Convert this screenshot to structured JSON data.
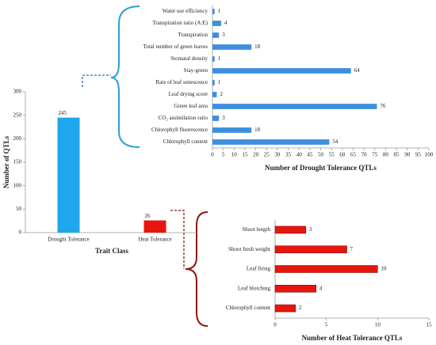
{
  "chart_data": [
    {
      "type": "bar",
      "categories": [
        "Drought Tolerance",
        "Heat Tolerance"
      ],
      "values": [
        245,
        26
      ],
      "colors": [
        "#1ea7ec",
        "#e8150d"
      ],
      "ylim": [
        0,
        300
      ],
      "yticks": [
        0,
        50,
        100,
        150,
        200,
        250,
        300
      ],
      "y_label": "Number of QTLs",
      "x_label": "Trait Class"
    },
    {
      "type": "barh",
      "categories": [
        "Water use efficiency",
        "Transpiration ratio (A:E)",
        "Transpiration",
        "Total number of green leaves",
        "Stomatal density",
        "Stay-green",
        "Rate of leaf senescence",
        "Leaf drying score",
        "Green leaf area",
        "CO₂ assimilation ratio",
        "Chlorophyll fluorescence",
        "Chlorophyll content"
      ],
      "values": [
        1,
        4,
        3,
        18,
        1,
        64,
        1,
        2,
        76,
        3,
        18,
        54
      ],
      "color": "#3d8fe0",
      "xlim": [
        0,
        100
      ],
      "xticks": [
        0,
        5,
        10,
        15,
        20,
        25,
        30,
        35,
        40,
        45,
        50,
        55,
        60,
        65,
        70,
        75,
        80,
        85,
        90,
        95,
        100
      ],
      "x_label": "Number of Drought Tolerance QTLs"
    },
    {
      "type": "barh",
      "categories": [
        "Shoot length",
        "Shoot fresh weight",
        "Leaf firing",
        "Leaf blotching",
        "Chlorophyll content"
      ],
      "values": [
        3,
        7,
        10,
        4,
        2
      ],
      "color": "#e8150d",
      "xlim": [
        0,
        15
      ],
      "xticks": [
        0,
        5,
        10,
        15
      ],
      "x_label": "Number of Heat Tolerance QTLs"
    }
  ]
}
